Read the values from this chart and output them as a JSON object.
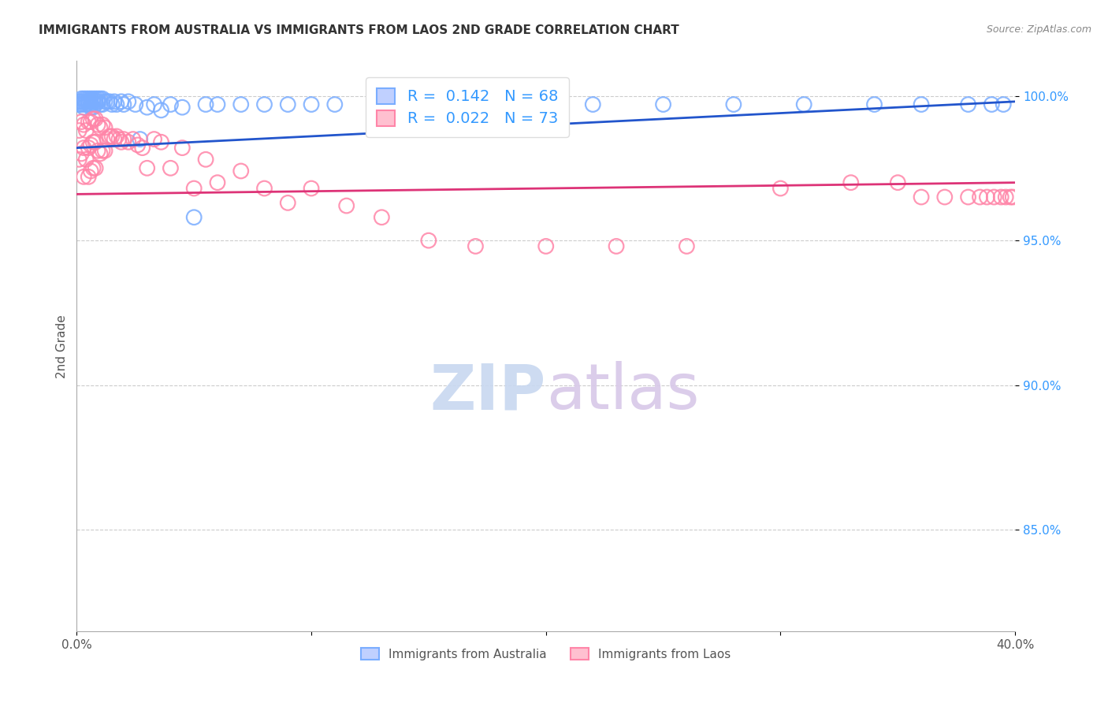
{
  "title": "IMMIGRANTS FROM AUSTRALIA VS IMMIGRANTS FROM LAOS 2ND GRADE CORRELATION CHART",
  "source": "Source: ZipAtlas.com",
  "ylabel": "2nd Grade",
  "xmin": 0.0,
  "xmax": 0.4,
  "ymin": 0.815,
  "ymax": 1.012,
  "yticks": [
    0.85,
    0.9,
    0.95,
    1.0
  ],
  "ytick_labels": [
    "85.0%",
    "90.0%",
    "95.0%",
    "100.0%"
  ],
  "xticks": [
    0.0,
    0.1,
    0.2,
    0.3,
    0.4
  ],
  "xtick_labels": [
    "0.0%",
    "",
    "",
    "",
    "40.0%"
  ],
  "australia_R": 0.142,
  "australia_N": 68,
  "laos_R": 0.022,
  "laos_N": 73,
  "australia_color": "#7aadff",
  "laos_color": "#ff85a8",
  "trendline_australia_color": "#2255cc",
  "trendline_laos_color": "#dd3377",
  "legend_box_color": "#aabbff",
  "legend_box_color2": "#ffaabb",
  "aus_trendline_x0": 0.0,
  "aus_trendline_y0": 0.982,
  "aus_trendline_x1": 0.4,
  "aus_trendline_y1": 0.998,
  "laos_trendline_x0": 0.0,
  "laos_trendline_y0": 0.966,
  "laos_trendline_x1": 0.4,
  "laos_trendline_y1": 0.97,
  "australia_x": [
    0.001,
    0.001,
    0.002,
    0.002,
    0.002,
    0.003,
    0.003,
    0.003,
    0.003,
    0.004,
    0.004,
    0.004,
    0.005,
    0.005,
    0.005,
    0.006,
    0.006,
    0.006,
    0.006,
    0.007,
    0.007,
    0.007,
    0.008,
    0.008,
    0.008,
    0.009,
    0.009,
    0.01,
    0.01,
    0.011,
    0.011,
    0.012,
    0.013,
    0.014,
    0.015,
    0.016,
    0.017,
    0.019,
    0.02,
    0.022,
    0.025,
    0.027,
    0.03,
    0.033,
    0.036,
    0.04,
    0.045,
    0.05,
    0.055,
    0.06,
    0.07,
    0.08,
    0.09,
    0.1,
    0.11,
    0.13,
    0.15,
    0.17,
    0.2,
    0.22,
    0.25,
    0.28,
    0.31,
    0.34,
    0.36,
    0.38,
    0.39,
    0.395
  ],
  "australia_y": [
    0.998,
    0.997,
    0.999,
    0.998,
    0.997,
    0.999,
    0.998,
    0.997,
    0.996,
    0.999,
    0.998,
    0.997,
    0.999,
    0.998,
    0.997,
    0.999,
    0.998,
    0.997,
    0.996,
    0.999,
    0.998,
    0.996,
    0.999,
    0.998,
    0.997,
    0.999,
    0.998,
    0.999,
    0.997,
    0.999,
    0.997,
    0.998,
    0.998,
    0.998,
    0.997,
    0.998,
    0.997,
    0.998,
    0.997,
    0.998,
    0.997,
    0.985,
    0.996,
    0.997,
    0.995,
    0.997,
    0.996,
    0.958,
    0.997,
    0.997,
    0.997,
    0.997,
    0.997,
    0.997,
    0.997,
    0.997,
    0.997,
    0.997,
    0.997,
    0.997,
    0.997,
    0.997,
    0.997,
    0.997,
    0.997,
    0.997,
    0.997,
    0.997
  ],
  "laos_x": [
    0.001,
    0.001,
    0.002,
    0.002,
    0.003,
    0.003,
    0.003,
    0.004,
    0.004,
    0.005,
    0.005,
    0.005,
    0.006,
    0.006,
    0.006,
    0.007,
    0.007,
    0.007,
    0.008,
    0.008,
    0.008,
    0.009,
    0.009,
    0.01,
    0.01,
    0.011,
    0.011,
    0.012,
    0.012,
    0.013,
    0.014,
    0.015,
    0.016,
    0.017,
    0.018,
    0.019,
    0.02,
    0.022,
    0.024,
    0.026,
    0.028,
    0.03,
    0.033,
    0.036,
    0.04,
    0.045,
    0.05,
    0.055,
    0.06,
    0.07,
    0.08,
    0.09,
    0.1,
    0.115,
    0.13,
    0.15,
    0.17,
    0.2,
    0.23,
    0.26,
    0.3,
    0.33,
    0.35,
    0.36,
    0.37,
    0.38,
    0.385,
    0.388,
    0.391,
    0.394,
    0.396,
    0.398,
    0.399
  ],
  "laos_y": [
    0.988,
    0.978,
    0.991,
    0.98,
    0.99,
    0.982,
    0.972,
    0.988,
    0.978,
    0.991,
    0.982,
    0.972,
    0.991,
    0.983,
    0.974,
    0.992,
    0.984,
    0.975,
    0.992,
    0.984,
    0.975,
    0.99,
    0.981,
    0.989,
    0.98,
    0.99,
    0.981,
    0.989,
    0.981,
    0.985,
    0.986,
    0.986,
    0.985,
    0.986,
    0.985,
    0.984,
    0.985,
    0.984,
    0.985,
    0.983,
    0.982,
    0.975,
    0.985,
    0.984,
    0.975,
    0.982,
    0.968,
    0.978,
    0.97,
    0.974,
    0.968,
    0.963,
    0.968,
    0.962,
    0.958,
    0.95,
    0.948,
    0.948,
    0.948,
    0.948,
    0.968,
    0.97,
    0.97,
    0.965,
    0.965,
    0.965,
    0.965,
    0.965,
    0.965,
    0.965,
    0.965,
    0.965,
    0.965
  ]
}
